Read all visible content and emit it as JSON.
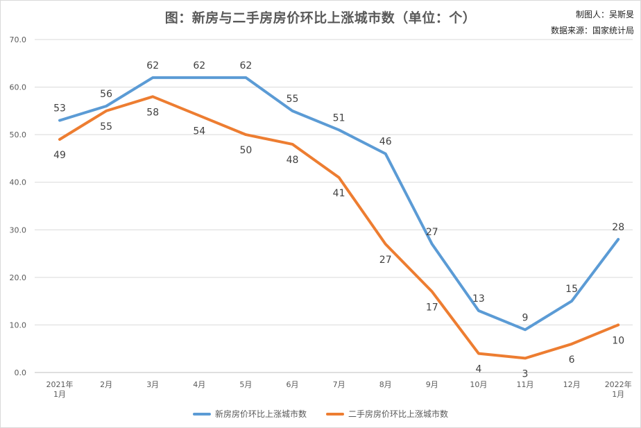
{
  "header": {
    "title": "图：新房与二手房房价环比上涨城市数（单位：个）",
    "credit_author": "制图人：吴斯旻",
    "credit_source": "数据来源：国家统计局"
  },
  "chart_data": {
    "type": "line",
    "categories": [
      [
        "2021年",
        "1月"
      ],
      [
        "2月"
      ],
      [
        "3月"
      ],
      [
        "4月"
      ],
      [
        "5月"
      ],
      [
        "6月"
      ],
      [
        "7月"
      ],
      [
        "8月"
      ],
      [
        "9月"
      ],
      [
        "10月"
      ],
      [
        "11月"
      ],
      [
        "12月"
      ],
      [
        "2022年",
        "1月"
      ]
    ],
    "series": [
      {
        "name": "新房房价环比上涨城市数",
        "color": "#5b9bd5",
        "values": [
          53,
          56,
          62,
          62,
          62,
          55,
          51,
          46,
          27,
          13,
          9,
          15,
          28
        ]
      },
      {
        "name": "二手房房价环比上涨城市数",
        "color": "#ed7d31",
        "values": [
          49,
          55,
          58,
          54,
          50,
          48,
          41,
          27,
          17,
          4,
          3,
          6,
          10
        ]
      }
    ],
    "ylim": [
      0,
      70
    ],
    "yticks": [
      "0.0",
      "10.0",
      "20.0",
      "30.0",
      "40.0",
      "50.0",
      "60.0",
      "70.0"
    ],
    "grid": true,
    "legend_position": "bottom"
  }
}
